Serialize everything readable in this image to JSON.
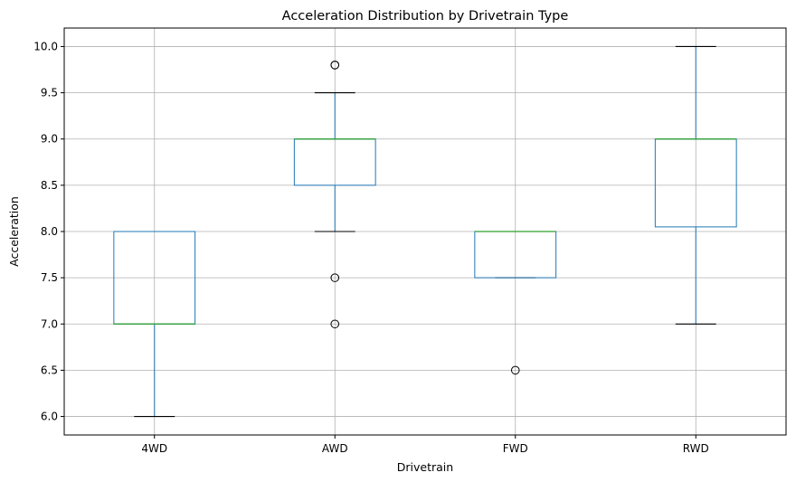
{
  "chart_data": {
    "type": "boxplot",
    "title": "Acceleration Distribution by Drivetrain Type",
    "xlabel": "Drivetrain",
    "ylabel": "Acceleration",
    "categories": [
      "4WD",
      "AWD",
      "FWD",
      "RWD"
    ],
    "ylim": [
      5.8,
      10.2
    ],
    "yticks": [
      "6.0",
      "6.5",
      "7.0",
      "7.5",
      "8.0",
      "8.5",
      "9.0",
      "9.5",
      "10.0"
    ],
    "grid": true,
    "boxes": [
      {
        "category": "4WD",
        "whisker_low": 6.0,
        "q1": 7.0,
        "median": 7.0,
        "q3": 8.0,
        "whisker_high": 8.0,
        "outliers": []
      },
      {
        "category": "AWD",
        "whisker_low": 8.0,
        "q1": 8.5,
        "median": 9.0,
        "q3": 9.0,
        "whisker_high": 9.5,
        "outliers": [
          9.8,
          9.8,
          7.5,
          7.0
        ]
      },
      {
        "category": "FWD",
        "whisker_low": 7.5,
        "q1": 7.5,
        "median": 8.0,
        "q3": 8.0,
        "whisker_high": 8.0,
        "outliers": [
          6.5
        ]
      },
      {
        "category": "RWD",
        "whisker_low": 7.0,
        "q1": 8.05,
        "median": 9.0,
        "q3": 9.0,
        "whisker_high": 10.0,
        "outliers": []
      }
    ],
    "colors": {
      "box": "#1f77b4",
      "median": "#2ca02c",
      "whisker_cap": "#000000",
      "grid": "#b0b0b0",
      "axes": "#000000"
    }
  }
}
